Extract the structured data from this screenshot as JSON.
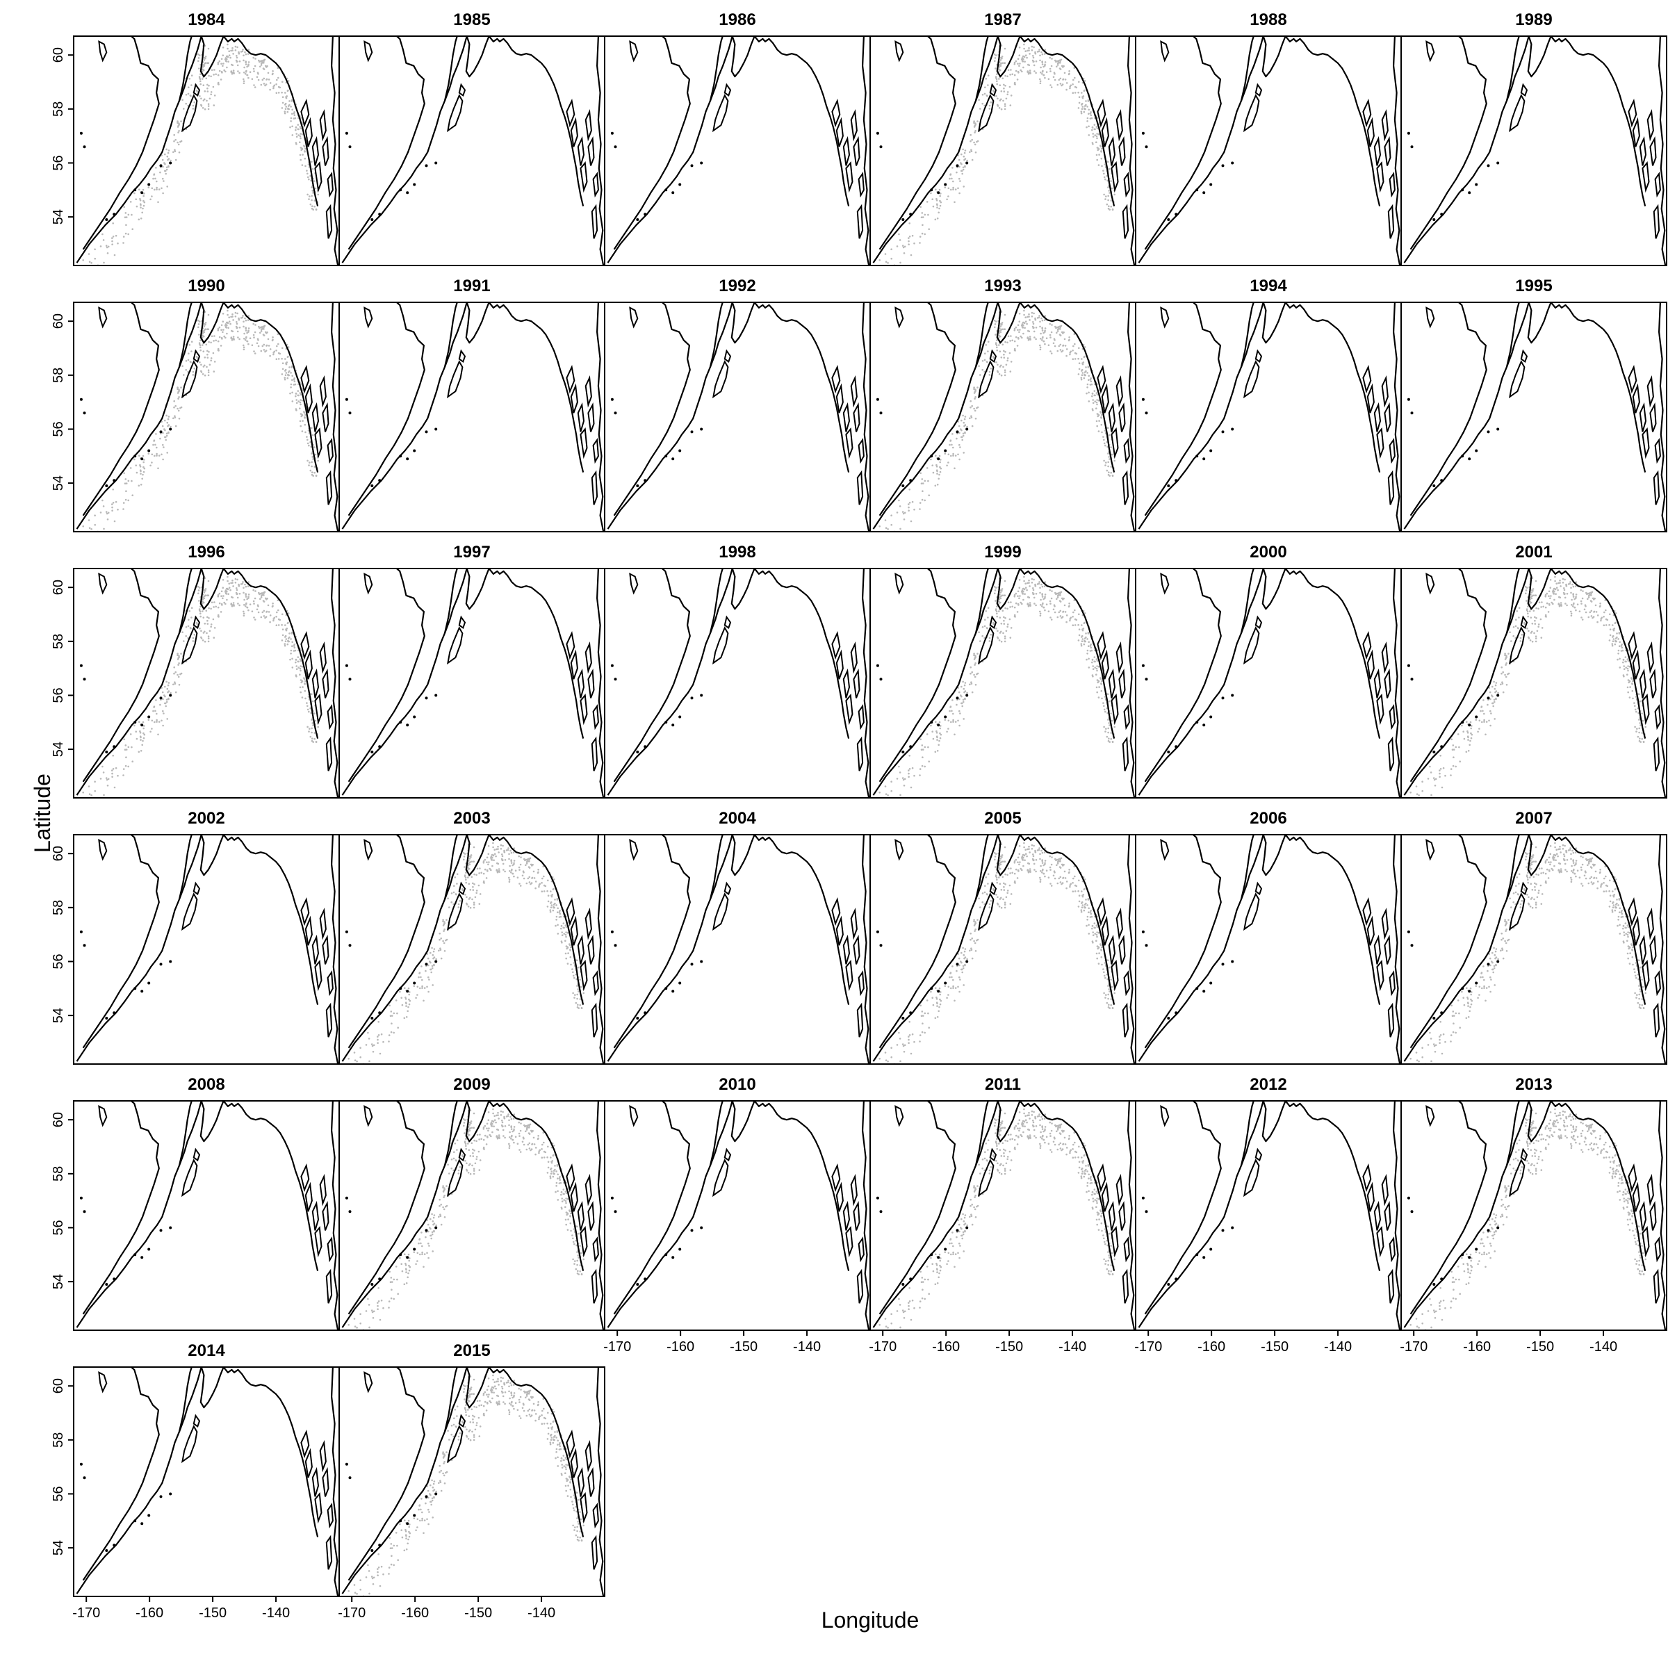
{
  "figure": {
    "xlabel": "Longitude",
    "ylabel": "Latitude",
    "x_ticks": [
      "-170",
      "-160",
      "-150",
      "-140"
    ],
    "y_ticks": [
      "54",
      "56",
      "58",
      "60"
    ]
  },
  "colors": {
    "coast": "#000000",
    "survey_points": "#b8b8b8",
    "frame": "#000000"
  },
  "chart_data": {
    "type": "scatter",
    "title": "",
    "xlabel": "Longitude",
    "ylabel": "Latitude",
    "xlim": [
      -172,
      -130
    ],
    "ylim": [
      52.2,
      60.7
    ],
    "grid": false,
    "panels": [
      {
        "year": "1984",
        "survey_points_shown": true
      },
      {
        "year": "1985",
        "survey_points_shown": false
      },
      {
        "year": "1986",
        "survey_points_shown": false
      },
      {
        "year": "1987",
        "survey_points_shown": true
      },
      {
        "year": "1988",
        "survey_points_shown": false
      },
      {
        "year": "1989",
        "survey_points_shown": false
      },
      {
        "year": "1990",
        "survey_points_shown": true
      },
      {
        "year": "1991",
        "survey_points_shown": false
      },
      {
        "year": "1992",
        "survey_points_shown": false
      },
      {
        "year": "1993",
        "survey_points_shown": true
      },
      {
        "year": "1994",
        "survey_points_shown": false
      },
      {
        "year": "1995",
        "survey_points_shown": false
      },
      {
        "year": "1996",
        "survey_points_shown": true
      },
      {
        "year": "1997",
        "survey_points_shown": false
      },
      {
        "year": "1998",
        "survey_points_shown": false
      },
      {
        "year": "1999",
        "survey_points_shown": true
      },
      {
        "year": "2000",
        "survey_points_shown": false
      },
      {
        "year": "2001",
        "survey_points_shown": true
      },
      {
        "year": "2002",
        "survey_points_shown": false
      },
      {
        "year": "2003",
        "survey_points_shown": true
      },
      {
        "year": "2004",
        "survey_points_shown": false
      },
      {
        "year": "2005",
        "survey_points_shown": true
      },
      {
        "year": "2006",
        "survey_points_shown": false
      },
      {
        "year": "2007",
        "survey_points_shown": true
      },
      {
        "year": "2008",
        "survey_points_shown": false
      },
      {
        "year": "2009",
        "survey_points_shown": true
      },
      {
        "year": "2010",
        "survey_points_shown": false
      },
      {
        "year": "2011",
        "survey_points_shown": true
      },
      {
        "year": "2012",
        "survey_points_shown": false
      },
      {
        "year": "2013",
        "survey_points_shown": true
      },
      {
        "year": "2014",
        "survey_points_shown": false
      },
      {
        "year": "2015",
        "survey_points_shown": true
      }
    ]
  }
}
